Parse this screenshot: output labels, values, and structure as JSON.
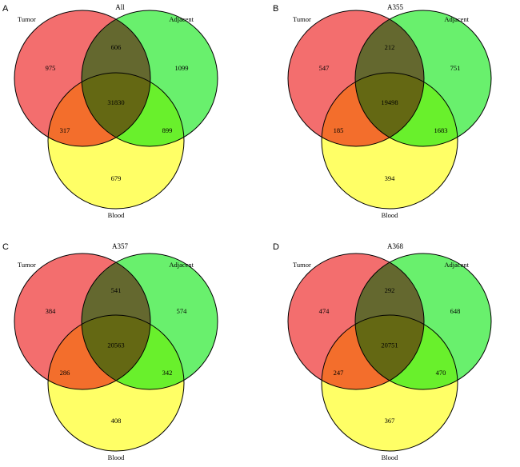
{
  "colors": {
    "tumor": "#f36e6e",
    "adjacent": "#69f06d",
    "blood": "#ffff66",
    "outline": "#000000",
    "background": "#ffffff"
  },
  "panels": [
    {
      "letter": "A",
      "title": "All",
      "sets": {
        "tumor": "Tumor",
        "adjacent": "Adjacent",
        "blood": "Blood"
      },
      "regions": {
        "tumor_only": "975",
        "tumor_adjacent": "606",
        "adjacent_only": "1099",
        "all_three": "31830",
        "tumor_blood": "317",
        "adjacent_blood": "899",
        "blood_only": "679"
      }
    },
    {
      "letter": "B",
      "title": "A355",
      "sets": {
        "tumor": "Tumor",
        "adjacent": "Adjacent",
        "blood": "Blood"
      },
      "regions": {
        "tumor_only": "547",
        "tumor_adjacent": "212",
        "adjacent_only": "751",
        "all_three": "19498",
        "tumor_blood": "185",
        "adjacent_blood": "1683",
        "blood_only": "394"
      }
    },
    {
      "letter": "C",
      "title": "A357",
      "sets": {
        "tumor": "Tumor",
        "adjacent": "Adjacent",
        "blood": "Blood"
      },
      "regions": {
        "tumor_only": "384",
        "tumor_adjacent": "541",
        "adjacent_only": "574",
        "all_three": "20563",
        "tumor_blood": "286",
        "adjacent_blood": "342",
        "blood_only": "408"
      }
    },
    {
      "letter": "D",
      "title": "A368",
      "sets": {
        "tumor": "Tumor",
        "adjacent": "Adjacent",
        "blood": "Blood"
      },
      "regions": {
        "tumor_only": "474",
        "tumor_adjacent": "292",
        "adjacent_only": "648",
        "all_three": "20751",
        "tumor_blood": "247",
        "adjacent_blood": "470",
        "blood_only": "367"
      }
    }
  ]
}
